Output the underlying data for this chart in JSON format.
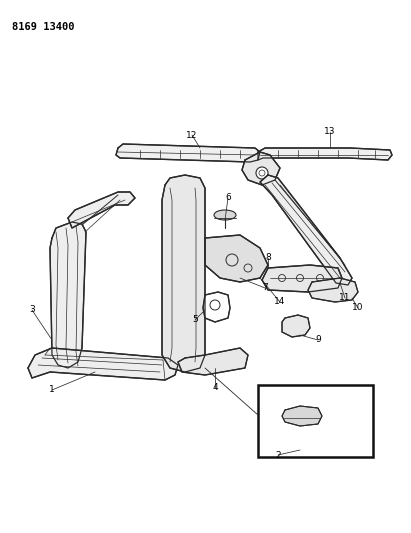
{
  "title": "8169 13400",
  "bg": "#ffffff",
  "lc": "#2a2a2a",
  "tc": "#000000",
  "figw": 4.11,
  "figh": 5.33,
  "dpi": 100
}
